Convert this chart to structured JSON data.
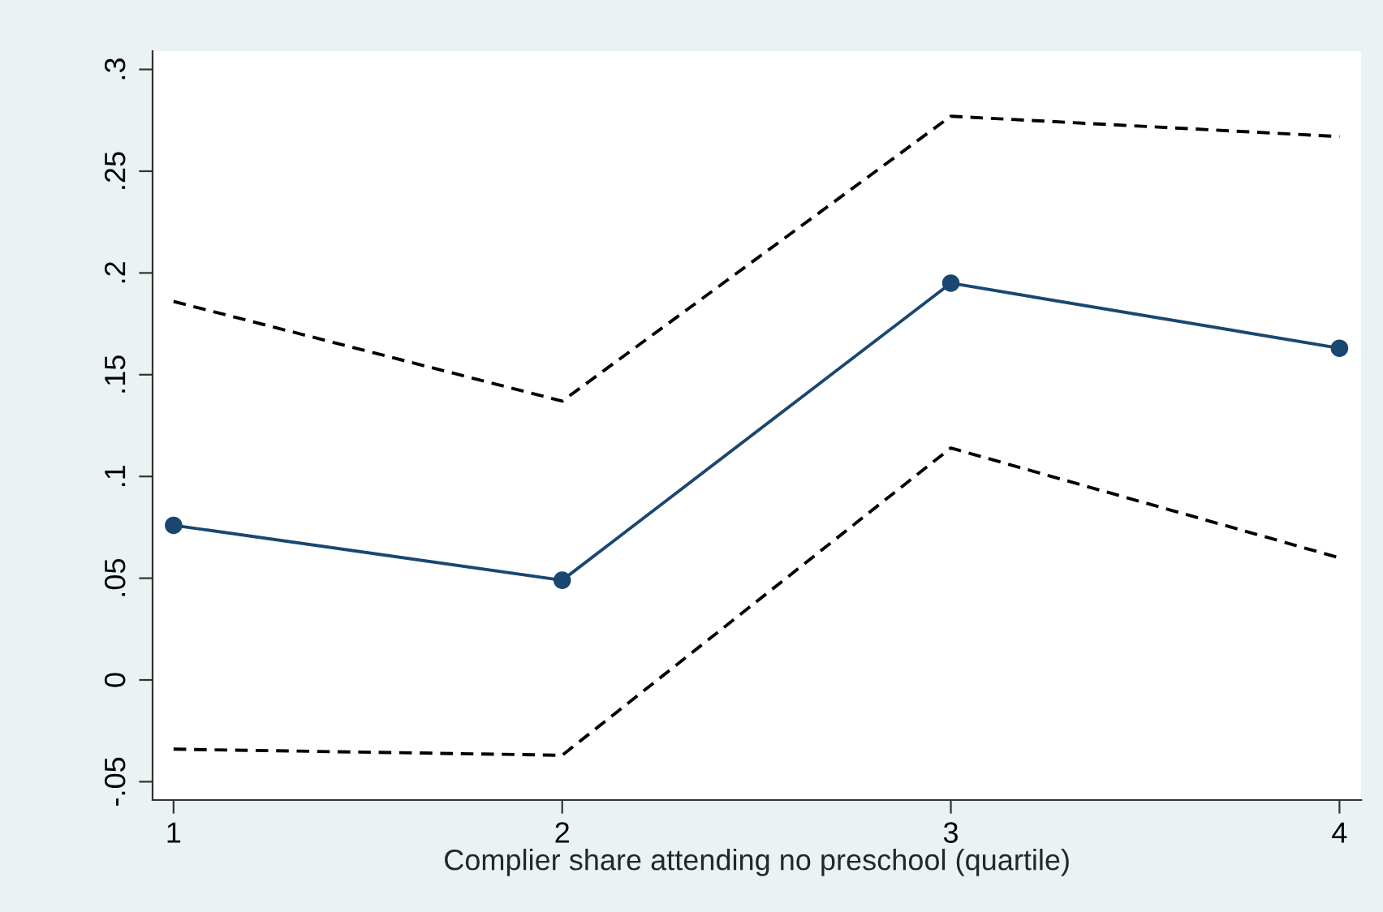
{
  "chart_data": {
    "type": "line",
    "xlabel": "Complier share attending no preschool (quartile)",
    "x": [
      1,
      2,
      3,
      4
    ],
    "series": [
      {
        "color": "#1a476f",
        "values": [
          0.076,
          0.049,
          0.195,
          0.163
        ],
        "marker": "circle",
        "line_style": "solid"
      },
      {
        "color": "#000000",
        "values": [
          0.186,
          0.137,
          0.277,
          0.267
        ],
        "marker": "none",
        "line_style": "dashed"
      },
      {
        "color": "#000000",
        "values": [
          -0.034,
          -0.037,
          0.114,
          0.06
        ],
        "marker": "none",
        "line_style": "dashed"
      }
    ],
    "xlim": [
      0.946,
      4.056
    ],
    "ylim": [
      -0.059,
      0.309
    ],
    "xticks": [
      1,
      2,
      3,
      4
    ],
    "yticks": [
      {
        "value": -0.05,
        "label": "-.05"
      },
      0,
      {
        "value": 0.05,
        "label": ".05"
      },
      {
        "value": 0.1,
        "label": ".1"
      },
      {
        "value": 0.15,
        "label": ".15"
      },
      {
        "value": 0.2,
        "label": ".2"
      },
      {
        "value": 0.25,
        "label": ".25"
      },
      {
        "value": 0.3,
        "label": ".3"
      }
    ],
    "grid": false,
    "legend": false
  }
}
